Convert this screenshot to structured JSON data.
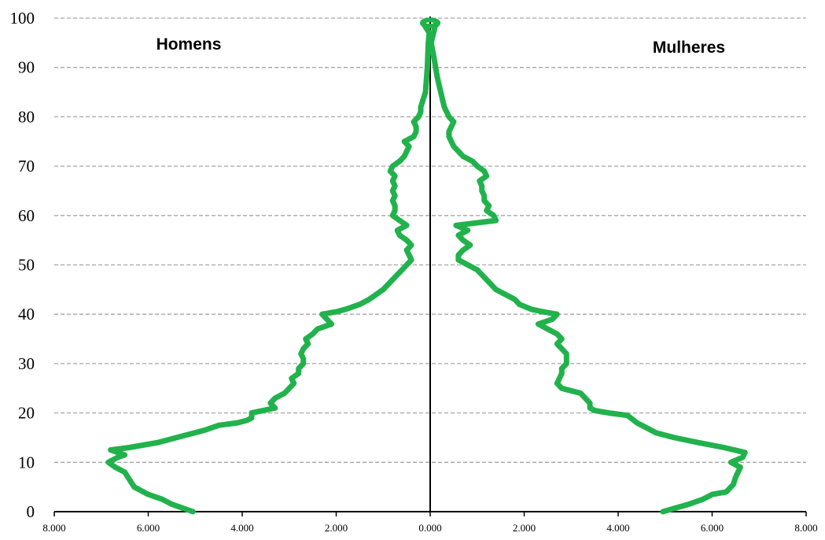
{
  "chart_data": {
    "type": "line",
    "title": "",
    "xlabel": "",
    "ylabel": "",
    "left_label": "Homens",
    "right_label": "Mulheres",
    "xlim": [
      -8000,
      8000
    ],
    "ylim": [
      0,
      100
    ],
    "x_ticks": [
      {
        "value": -8000,
        "label": "8.000"
      },
      {
        "value": -6000,
        "label": "6.000"
      },
      {
        "value": -4000,
        "label": "4.000"
      },
      {
        "value": -2000,
        "label": "2.000"
      },
      {
        "value": 0,
        "label": "0.000"
      },
      {
        "value": 2000,
        "label": "2.000"
      },
      {
        "value": 4000,
        "label": "4.000"
      },
      {
        "value": 6000,
        "label": "6.000"
      },
      {
        "value": 8000,
        "label": "8.000"
      }
    ],
    "y_ticks": [
      {
        "value": 0,
        "label": "0"
      },
      {
        "value": 10,
        "label": "10"
      },
      {
        "value": 20,
        "label": "20"
      },
      {
        "value": 30,
        "label": "30"
      },
      {
        "value": 40,
        "label": "40"
      },
      {
        "value": 50,
        "label": "50"
      },
      {
        "value": 60,
        "label": "60"
      },
      {
        "value": 70,
        "label": "70"
      },
      {
        "value": 80,
        "label": "80"
      },
      {
        "value": 90,
        "label": "90"
      },
      {
        "value": 100,
        "label": "100"
      }
    ],
    "grid": true,
    "line_color": "#21b24c",
    "series": [
      {
        "name": "Homens",
        "points": [
          [
            -5050,
            0
          ],
          [
            -5500,
            1.5
          ],
          [
            -5700,
            2.5
          ],
          [
            -6000,
            3.5
          ],
          [
            -6300,
            5
          ],
          [
            -6400,
            6.5
          ],
          [
            -6500,
            8
          ],
          [
            -6700,
            9
          ],
          [
            -6850,
            10
          ],
          [
            -6650,
            11
          ],
          [
            -6500,
            11.5
          ],
          [
            -6800,
            12.5
          ],
          [
            -6400,
            13
          ],
          [
            -5800,
            14
          ],
          [
            -5200,
            15.5
          ],
          [
            -4800,
            16.5
          ],
          [
            -4500,
            17.5
          ],
          [
            -4100,
            18
          ],
          [
            -3900,
            18.5
          ],
          [
            -3800,
            19
          ],
          [
            -3800,
            20
          ],
          [
            -3300,
            21
          ],
          [
            -3400,
            22
          ],
          [
            -3300,
            23
          ],
          [
            -3100,
            24
          ],
          [
            -3000,
            25
          ],
          [
            -2900,
            26
          ],
          [
            -2950,
            27
          ],
          [
            -2800,
            28
          ],
          [
            -2800,
            29
          ],
          [
            -2700,
            30
          ],
          [
            -2700,
            31
          ],
          [
            -2750,
            32
          ],
          [
            -2700,
            33
          ],
          [
            -2600,
            34
          ],
          [
            -2650,
            35
          ],
          [
            -2500,
            36
          ],
          [
            -2400,
            37
          ],
          [
            -2100,
            38
          ],
          [
            -2200,
            39
          ],
          [
            -2300,
            40
          ],
          [
            -2000,
            40.5
          ],
          [
            -1800,
            41
          ],
          [
            -1500,
            42
          ],
          [
            -1300,
            43
          ],
          [
            -1150,
            44
          ],
          [
            -1000,
            45
          ],
          [
            -900,
            46
          ],
          [
            -800,
            47
          ],
          [
            -700,
            48
          ],
          [
            -600,
            49
          ],
          [
            -500,
            50
          ],
          [
            -400,
            51
          ],
          [
            -500,
            53
          ],
          [
            -400,
            54
          ],
          [
            -500,
            55
          ],
          [
            -650,
            56
          ],
          [
            -700,
            57
          ],
          [
            -500,
            58
          ],
          [
            -650,
            59
          ],
          [
            -800,
            60
          ],
          [
            -750,
            61
          ],
          [
            -750,
            62
          ],
          [
            -800,
            63
          ],
          [
            -750,
            64
          ],
          [
            -800,
            65
          ],
          [
            -750,
            66
          ],
          [
            -800,
            67
          ],
          [
            -750,
            68
          ],
          [
            -850,
            69
          ],
          [
            -800,
            70
          ],
          [
            -650,
            71
          ],
          [
            -550,
            72
          ],
          [
            -500,
            73
          ],
          [
            -450,
            74
          ],
          [
            -550,
            75
          ],
          [
            -350,
            76
          ],
          [
            -300,
            77
          ],
          [
            -300,
            78
          ],
          [
            -350,
            79
          ],
          [
            -250,
            80
          ],
          [
            -200,
            81
          ],
          [
            -200,
            82
          ],
          [
            -100,
            85
          ],
          [
            -60,
            90
          ],
          [
            -40,
            95
          ],
          [
            -20,
            97
          ],
          [
            -150,
            99
          ]
        ]
      },
      {
        "name": "Mulheres",
        "points": [
          [
            4950,
            0
          ],
          [
            5500,
            1.5
          ],
          [
            5800,
            2.5
          ],
          [
            6000,
            3.5
          ],
          [
            6300,
            4
          ],
          [
            6450,
            5.5
          ],
          [
            6500,
            7
          ],
          [
            6550,
            8
          ],
          [
            6600,
            9
          ],
          [
            6400,
            10
          ],
          [
            6650,
            11
          ],
          [
            6700,
            12
          ],
          [
            6250,
            13
          ],
          [
            5700,
            14
          ],
          [
            5200,
            15
          ],
          [
            4800,
            16
          ],
          [
            4600,
            17
          ],
          [
            4400,
            18
          ],
          [
            4200,
            19.5
          ],
          [
            3800,
            20
          ],
          [
            3500,
            20.5
          ],
          [
            3400,
            21
          ],
          [
            3400,
            22
          ],
          [
            3300,
            23
          ],
          [
            3200,
            24
          ],
          [
            2800,
            25
          ],
          [
            2700,
            26
          ],
          [
            2750,
            27
          ],
          [
            2800,
            28
          ],
          [
            2800,
            29
          ],
          [
            2900,
            30
          ],
          [
            2900,
            31
          ],
          [
            2900,
            32
          ],
          [
            2800,
            33
          ],
          [
            2700,
            34
          ],
          [
            2800,
            35
          ],
          [
            2700,
            36
          ],
          [
            2500,
            37
          ],
          [
            2300,
            38
          ],
          [
            2600,
            39
          ],
          [
            2700,
            40
          ],
          [
            2400,
            40.5
          ],
          [
            2150,
            41
          ],
          [
            1900,
            42
          ],
          [
            1800,
            43
          ],
          [
            1600,
            44
          ],
          [
            1400,
            45
          ],
          [
            1300,
            46
          ],
          [
            1200,
            47
          ],
          [
            1100,
            48
          ],
          [
            1000,
            49
          ],
          [
            800,
            50
          ],
          [
            600,
            51
          ],
          [
            600,
            52
          ],
          [
            700,
            53
          ],
          [
            850,
            54
          ],
          [
            700,
            55
          ],
          [
            600,
            56
          ],
          [
            800,
            57
          ],
          [
            550,
            58
          ],
          [
            1400,
            59
          ],
          [
            1350,
            60
          ],
          [
            1200,
            61
          ],
          [
            1250,
            62
          ],
          [
            1150,
            63
          ],
          [
            1150,
            64
          ],
          [
            1100,
            65
          ],
          [
            1100,
            66
          ],
          [
            1050,
            67
          ],
          [
            1200,
            68
          ],
          [
            1150,
            69
          ],
          [
            1000,
            70
          ],
          [
            900,
            71
          ],
          [
            700,
            72
          ],
          [
            600,
            73
          ],
          [
            500,
            74
          ],
          [
            450,
            75
          ],
          [
            400,
            76
          ],
          [
            400,
            77
          ],
          [
            450,
            78
          ],
          [
            500,
            79
          ],
          [
            400,
            80
          ],
          [
            350,
            81
          ],
          [
            300,
            82
          ],
          [
            250,
            84
          ],
          [
            150,
            88
          ],
          [
            80,
            92
          ],
          [
            20,
            95
          ],
          [
            120,
            99
          ]
        ]
      }
    ]
  }
}
